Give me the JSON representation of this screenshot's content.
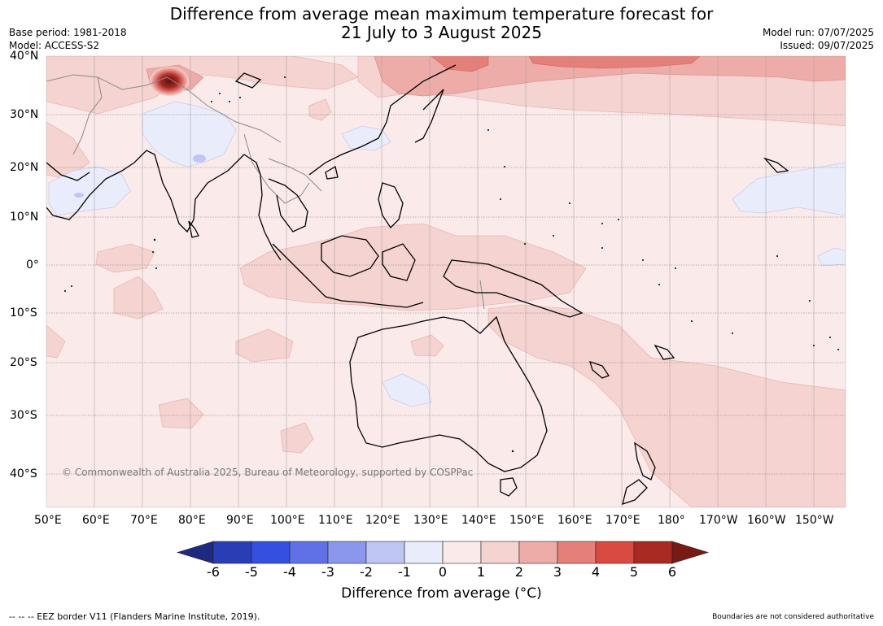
{
  "title": {
    "line1": "Difference from average mean maximum temperature forecast for",
    "line2": "21 July to 3 August 2025"
  },
  "meta_left": {
    "base_period": "Base period: 1981-2018",
    "model": "Model: ACCESS-S2"
  },
  "meta_right": {
    "model_run": "Model run: 07/07/2025",
    "issued": "Issued: 09/07/2025"
  },
  "lat_labels": [
    "40°N",
    "30°N",
    "20°N",
    "10°N",
    "0°",
    "10°S",
    "20°S",
    "30°S",
    "40°S"
  ],
  "lon_labels": [
    "50°E",
    "60°E",
    "70°E",
    "80°E",
    "90°E",
    "100°E",
    "110°E",
    "120°E",
    "130°E",
    "140°E",
    "150°E",
    "160°E",
    "170°E",
    "180°",
    "170°W",
    "160°W",
    "150°W"
  ],
  "copyright": "© Commonwealth of Australia 2025, Bureau of Meteorology, supported by COSPPac",
  "colorbar": {
    "ticks": [
      "-6",
      "-5",
      "-4",
      "-3",
      "-2",
      "-1",
      "0",
      "1",
      "2",
      "3",
      "4",
      "5",
      "6"
    ],
    "colors": [
      "#1e2a80",
      "#2a3db5",
      "#3550e0",
      "#6070e6",
      "#8a97ec",
      "#bfc6f4",
      "#e9ecfb",
      "#fbeaea",
      "#f5d3d1",
      "#edaca8",
      "#e48079",
      "#d94b42",
      "#a82a23",
      "#7a1a15"
    ],
    "label": "Difference from average (°C)"
  },
  "footer": {
    "left": "--  --  -- EEZ border V11 (Flanders Marine Institute, 2019).",
    "right": "Boundaries are not considered authoritative"
  },
  "colors": {
    "ocean_base": "#fbeaea",
    "warm_1": "#f5d3d1",
    "warm_2": "#edaca8",
    "warm_3": "#e48079",
    "cool_1": "#e9ecfb",
    "hot_core": "#7a1a15"
  }
}
